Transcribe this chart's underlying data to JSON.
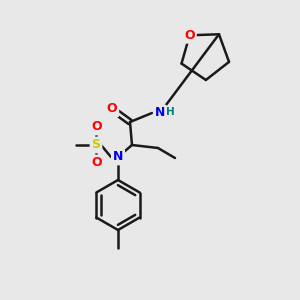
{
  "bg_color": "#e8e8e8",
  "bond_color": "#1a1a1a",
  "bond_width": 1.8,
  "atom_colors": {
    "O": "#ff0000",
    "N": "#0000ee",
    "S": "#cccc00",
    "H_amide": "#008080",
    "C": "#1a1a1a"
  },
  "font_size_atom": 9,
  "font_size_small": 7.5,
  "figure_size": [
    3.0,
    3.0
  ],
  "dpi": 100
}
